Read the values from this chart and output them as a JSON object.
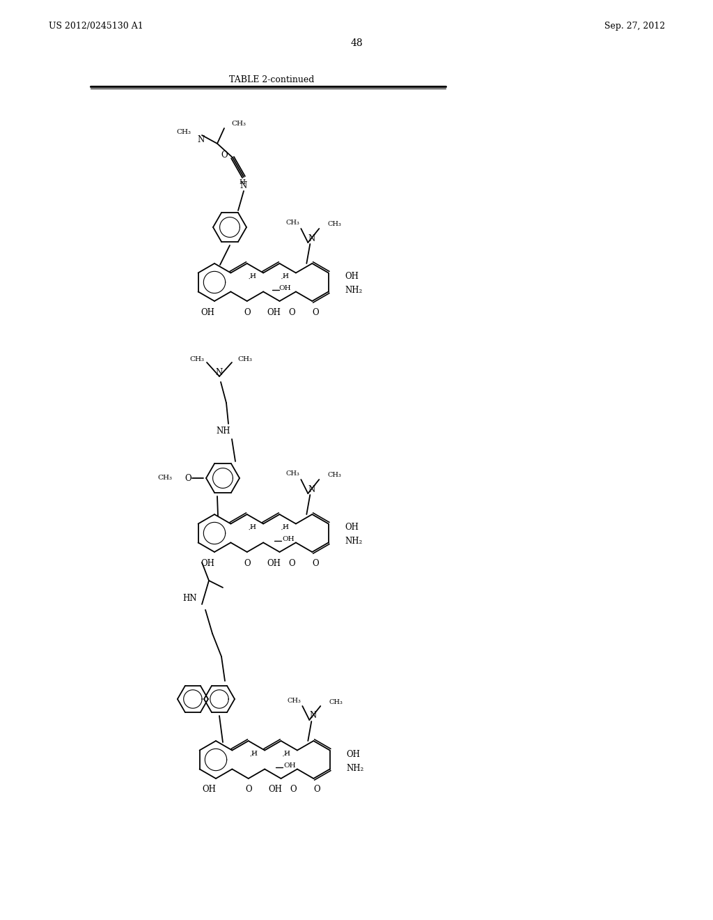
{
  "background_color": "#ffffff",
  "header_left": "US 2012/0245130 A1",
  "header_right": "Sep. 27, 2012",
  "page_number": "48",
  "table_title": "TABLE 2-continued",
  "header_font_size": 9,
  "page_num_font_size": 11,
  "table_title_font_size": 8
}
